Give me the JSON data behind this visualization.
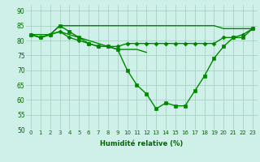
{
  "xlabel": "Humidité relative (%)",
  "xlim": [
    -0.5,
    23.5
  ],
  "ylim": [
    50,
    92
  ],
  "yticks": [
    50,
    55,
    60,
    65,
    70,
    75,
    80,
    85,
    90
  ],
  "xticks": [
    0,
    1,
    2,
    3,
    4,
    5,
    6,
    7,
    8,
    9,
    10,
    11,
    12,
    13,
    14,
    15,
    16,
    17,
    18,
    19,
    20,
    21,
    22,
    23
  ],
  "bg_color": "#cff0e8",
  "grid_color": "#a0ccbb",
  "line_color": "#008800",
  "series": [
    {
      "x": [
        0,
        1,
        2,
        3,
        4,
        5,
        6,
        7,
        8,
        9,
        10,
        11,
        12,
        13,
        14,
        15,
        16,
        17,
        18,
        19,
        20,
        21,
        22,
        23
      ],
      "y": [
        82,
        82,
        82,
        85,
        85,
        85,
        85,
        85,
        85,
        85,
        85,
        85,
        85,
        85,
        85,
        85,
        85,
        85,
        85,
        85,
        84,
        84,
        84,
        84
      ],
      "marker": null,
      "lw": 1.0
    },
    {
      "x": [
        0,
        1,
        2,
        3,
        4,
        5,
        6,
        7,
        8,
        9,
        10,
        11,
        12,
        13,
        14,
        15,
        16,
        17,
        18,
        19,
        20,
        21,
        22,
        23
      ],
      "y": [
        82,
        81,
        82,
        83,
        81,
        80,
        79,
        78,
        78,
        78,
        79,
        79,
        79,
        79,
        79,
        79,
        79,
        79,
        79,
        79,
        81,
        81,
        82,
        84
      ],
      "marker": "D",
      "lw": 1.0
    },
    {
      "x": [
        0,
        1,
        2,
        3,
        4,
        5,
        6,
        7,
        8,
        9,
        10,
        11,
        12,
        13,
        14,
        15,
        16,
        17,
        18,
        19,
        20,
        21,
        22,
        23
      ],
      "y": [
        82,
        81,
        82,
        85,
        83,
        81,
        79,
        78,
        78,
        77,
        70,
        65,
        62,
        57,
        59,
        58,
        58,
        63,
        68,
        74,
        78,
        81,
        81,
        84
      ],
      "marker": "s",
      "lw": 1.0
    },
    {
      "x": [
        0,
        1,
        2,
        3,
        4,
        5,
        6,
        7,
        8,
        9,
        10,
        11,
        12
      ],
      "y": [
        82,
        81,
        82,
        83,
        82,
        81,
        80,
        79,
        78,
        77,
        77,
        77,
        76
      ],
      "marker": null,
      "lw": 1.0
    }
  ]
}
